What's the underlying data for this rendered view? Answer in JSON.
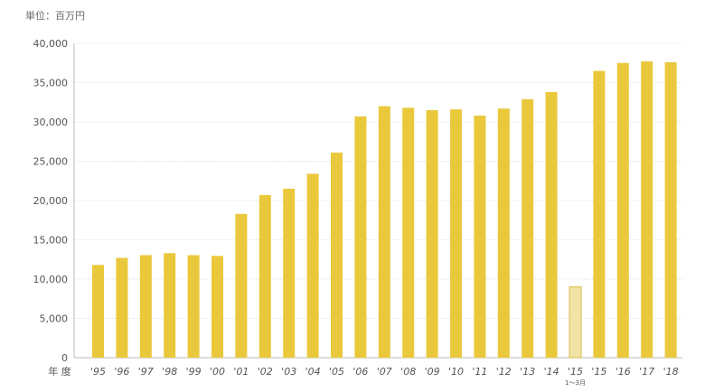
{
  "unit_label": "単位：百万円",
  "chart_data": {
    "type": "bar",
    "xlabel": "年 度",
    "ylabel": "",
    "ylim": [
      0,
      40000
    ],
    "yticks": [
      0,
      5000,
      10000,
      15000,
      20000,
      25000,
      30000,
      35000,
      40000
    ],
    "ytick_labels": [
      "0",
      "5,000",
      "10,000",
      "15,000",
      "20,000",
      "25,000",
      "30,000",
      "35,000",
      "40,000"
    ],
    "grid": true,
    "categories": [
      "'95",
      "'96",
      "'97",
      "'98",
      "'99",
      "'00",
      "'01",
      "'02",
      "'03",
      "'04",
      "'05",
      "'06",
      "'07",
      "'08",
      "'09",
      "'10",
      "'11",
      "'12",
      "'13",
      "'14",
      "'15",
      "'15",
      "'16",
      "'17",
      "'18"
    ],
    "category_notes": [
      "",
      "",
      "",
      "",
      "",
      "",
      "",
      "",
      "",
      "",
      "",
      "",
      "",
      "",
      "",
      "",
      "",
      "",
      "",
      "",
      "1〜3月",
      "",
      "",
      "",
      ""
    ],
    "values": [
      11800,
      12700,
      13050,
      13300,
      13050,
      12950,
      18300,
      20700,
      21500,
      23400,
      26100,
      30700,
      32000,
      31800,
      31500,
      31600,
      30800,
      31700,
      32900,
      33800,
      9000,
      36500,
      37500,
      37700,
      37600
    ],
    "highlight": [
      false,
      false,
      false,
      false,
      false,
      false,
      false,
      false,
      false,
      false,
      false,
      false,
      false,
      false,
      false,
      false,
      false,
      false,
      false,
      false,
      true,
      false,
      false,
      false,
      false
    ],
    "colors": {
      "bar": "#eac83b",
      "bar_highlight": "#f3e2a6",
      "bar_highlight_stroke": "#d9bd45",
      "grid": "#d9d9d9",
      "axis": "#bbbbbb"
    }
  }
}
